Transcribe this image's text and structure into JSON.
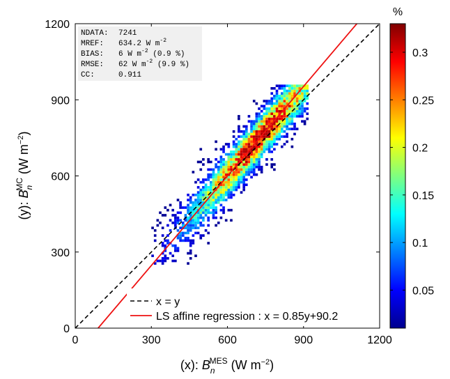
{
  "chart_data": {
    "type": "heatmap",
    "subtype": "2D density scatter with regression",
    "xlim": [
      0,
      1200
    ],
    "ylim": [
      0,
      1200
    ],
    "xticks": [
      "0",
      "300",
      "600",
      "900",
      "1200"
    ],
    "yticks": [
      "0",
      "300",
      "600",
      "900",
      "1200"
    ],
    "xlabel": {
      "prefix": "(x): ",
      "sym": "B",
      "sub": "n",
      "sup": "MES",
      "unit": " (W m",
      "unit_sup": "−2",
      "close": ")"
    },
    "ylabel": {
      "prefix": "(y): ",
      "sym": "B",
      "sub": "n",
      "sup": "MC",
      "unit": " (W m",
      "unit_sup": "−2",
      "close": ")"
    },
    "stats": [
      {
        "key": "NDATA:",
        "value": "7241",
        "sup": "",
        "tail": ""
      },
      {
        "key": "MREF:",
        "value": "634.2 W m",
        "sup": "-2",
        "tail": ""
      },
      {
        "key": "BIAS:",
        "value": "6 W m",
        "sup": "-2",
        "tail": " (0.9 %)"
      },
      {
        "key": "RMSE:",
        "value": "62 W m",
        "sup": "-2",
        "tail": " (9.9 %)"
      },
      {
        "key": "CC:",
        "value": "0.911",
        "sup": "",
        "tail": ""
      }
    ],
    "legend": {
      "position": "bottom-right",
      "entries": [
        {
          "label": "x = y",
          "style": "dashed",
          "color": "#000000"
        },
        {
          "label": "LS affine regression : x = 0.85y+90.2",
          "style": "solid",
          "color": "#ee1111"
        }
      ]
    },
    "identity_line": {
      "slope": 1,
      "intercept": 0
    },
    "regression_line": {
      "x_from_y": {
        "a": 0.85,
        "b": 90.2
      }
    },
    "density": {
      "center": [
        720,
        740
      ],
      "main_axis_slope": 1.15,
      "x_range_approx": [
        290,
        920
      ],
      "y_range_approx": [
        250,
        960
      ],
      "n_points": 7241,
      "peak_percent": 0.33
    },
    "colorbar": {
      "title": "%",
      "min": 0.01,
      "max": 0.33,
      "ticks": [
        "0.05",
        "0.1",
        "0.15",
        "0.2",
        "0.25",
        "0.3"
      ],
      "colormap": "jet"
    }
  }
}
